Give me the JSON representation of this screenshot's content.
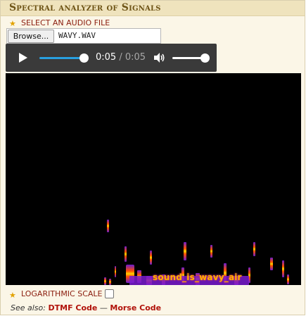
{
  "panel": {
    "title": "Spectral analyzer of Signals"
  },
  "file_select": {
    "label": "SELECT AN AUDIO FILE",
    "browse_label": "Browse...",
    "file_name": "WAVY.WAV"
  },
  "player": {
    "current_time": "0:05",
    "separator": "/",
    "duration": "0:05",
    "progress": 1.0,
    "volume": 1.0,
    "icons": {
      "play": "play-icon",
      "volume": "volume-icon"
    },
    "accent_color": "#28a0e0"
  },
  "spectrogram": {
    "embedded_text": "sound_is_wavy_air",
    "colors": {
      "background": "#000000",
      "low": "#6a1bd0",
      "mid": "#ff4e00",
      "high": "#ffd200"
    }
  },
  "options": {
    "log_scale_label": "LOGARITHMIC SCALE",
    "log_scale_checked": false
  },
  "see_also": {
    "prefix": "See also:",
    "links": [
      {
        "label": "DTMF Code"
      },
      {
        "label": "Morse Code"
      }
    ],
    "separator": "—"
  }
}
